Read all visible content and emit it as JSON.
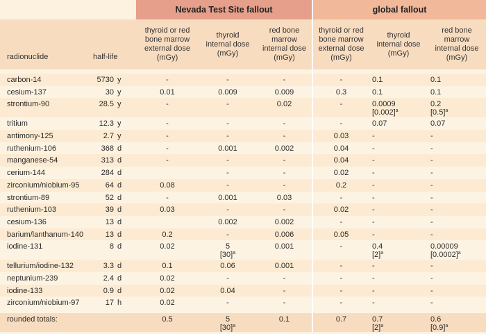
{
  "groups": {
    "nts": "Nevada Test Site fallout",
    "global": "global fallout"
  },
  "headers": {
    "radionuclide": "radionuclide",
    "half_life": "half-life",
    "nts_ext": "thyroid or red bone marrow external dose (mGy)",
    "nts_thy": "thyroid internal dose (mGy)",
    "nts_rbm": "red bone marrow internal dose (mGy)",
    "gl_ext": "thyroid or red bone marrow external dose (mGy)",
    "gl_thy": "thyroid internal dose (mGy)",
    "gl_rbm": "red bone marrow internal dose (mGy)"
  },
  "rows": [
    {
      "name": "carbon-14",
      "hl": "5730",
      "unit": "y",
      "n_ext": "-",
      "n_thy": "-",
      "n_rbm": "-",
      "g_ext": "-",
      "g_thy": "0.1",
      "g_rbm": "0.1"
    },
    {
      "name": "cesium-137",
      "hl": "30",
      "unit": "y",
      "n_ext": "0.01",
      "n_thy": "0.009",
      "n_rbm": "0.009",
      "g_ext": "0.3",
      "g_thy": "0.1",
      "g_rbm": "0.1"
    },
    {
      "name": "strontium-90",
      "hl": "28.5",
      "unit": "y",
      "n_ext": "-",
      "n_thy": "-",
      "n_rbm": "0.02",
      "g_ext": "-",
      "g_thy": "0.0009",
      "g_thy2": "[0.002]",
      "g_rbm": "0.2",
      "g_rbm2": "[0.5]"
    },
    {
      "name": "tritium",
      "hl": "12.3",
      "unit": "y",
      "n_ext": "-",
      "n_thy": "-",
      "n_rbm": "-",
      "g_ext": "-",
      "g_thy": "0.07",
      "g_rbm": "0.07"
    },
    {
      "name": "antimony-125",
      "hl": "2.7",
      "unit": "y",
      "n_ext": "-",
      "n_thy": "-",
      "n_rbm": "-",
      "g_ext": "0.03",
      "g_thy": "-",
      "g_rbm": "-"
    },
    {
      "name": "ruthenium-106",
      "hl": "368",
      "unit": "d",
      "n_ext": "-",
      "n_thy": "0.001",
      "n_rbm": "0.002",
      "g_ext": "0.04",
      "g_thy": "-",
      "g_rbm": "-"
    },
    {
      "name": "manganese-54",
      "hl": "313",
      "unit": "d",
      "n_ext": "-",
      "n_thy": "-",
      "n_rbm": "-",
      "g_ext": "0.04",
      "g_thy": "-",
      "g_rbm": "-"
    },
    {
      "name": "cerium-144",
      "hl": "284",
      "unit": "d",
      "n_ext": "",
      "n_thy": "-",
      "n_rbm": "-",
      "g_ext": "0.02",
      "g_thy": "-",
      "g_rbm": "-"
    },
    {
      "name": "zirconium/niobium-95",
      "hl": "64",
      "unit": "d",
      "n_ext": "0.08",
      "n_thy": "-",
      "n_rbm": "-",
      "g_ext": "0.2",
      "g_thy": "-",
      "g_rbm": "-"
    },
    {
      "name": "strontium-89",
      "hl": "52",
      "unit": "d",
      "n_ext": "-",
      "n_thy": "0.001",
      "n_rbm": "0.03",
      "g_ext": "-",
      "g_thy": "-",
      "g_rbm": "-"
    },
    {
      "name": "ruthenium-103",
      "hl": "39",
      "unit": "d",
      "n_ext": "0.03",
      "n_thy": "-",
      "n_rbm": "-",
      "g_ext": "0.02",
      "g_thy": "-",
      "g_rbm": "-"
    },
    {
      "name": "cesium-136",
      "hl": "13",
      "unit": "d",
      "n_ext": "",
      "n_thy": "0.002",
      "n_rbm": "0.002",
      "g_ext": "-",
      "g_thy": "-",
      "g_rbm": "-"
    },
    {
      "name": "barium/lanthanum-140",
      "hl": "13",
      "unit": "d",
      "n_ext": "0.2",
      "n_thy": "-",
      "n_rbm": "0.006",
      "g_ext": "0.05",
      "g_thy": "-",
      "g_rbm": "-"
    },
    {
      "name": "iodine-131",
      "hl": "8",
      "unit": "d",
      "n_ext": "0.02",
      "n_thy": "5",
      "n_thy2": "[30]",
      "n_rbm": "0.001",
      "g_ext": "-",
      "g_thy": "0.4",
      "g_thy2": "[2]",
      "g_rbm": "0.00009",
      "g_rbm2": "[0.0002]"
    },
    {
      "name": "tellurium/iodine-132",
      "hl": "3.3",
      "unit": "d",
      "n_ext": "0.1",
      "n_thy": "0.06",
      "n_rbm": "0.001",
      "g_ext": "-",
      "g_thy": "-",
      "g_rbm": "-"
    },
    {
      "name": "neptunium-239",
      "hl": "2.4",
      "unit": "d",
      "n_ext": "0.02",
      "n_thy": "-",
      "n_rbm": "-",
      "g_ext": "-",
      "g_thy": "-",
      "g_rbm": "-"
    },
    {
      "name": "iodine-133",
      "hl": "0.9",
      "unit": "d",
      "n_ext": "0.02",
      "n_thy": "0.04",
      "n_rbm": "-",
      "g_ext": "-",
      "g_thy": "-",
      "g_rbm": "-"
    },
    {
      "name": "zirconium/niobium-97",
      "hl": "17",
      "unit": "h",
      "n_ext": "0.02",
      "n_thy": "-",
      "n_rbm": "-",
      "g_ext": "-",
      "g_thy": "-",
      "g_rbm": "-"
    }
  ],
  "totals": {
    "label": "rounded totals:",
    "n_ext": "0.5",
    "n_thy": "5",
    "n_thy2": "[30]",
    "n_rbm": "0.1",
    "g_ext": "0.7",
    "g_thy": "0.7",
    "g_thy2": "[2]",
    "g_rbm": "0.6",
    "g_rbm2": "[0.9]"
  },
  "footnote_mark": "a"
}
